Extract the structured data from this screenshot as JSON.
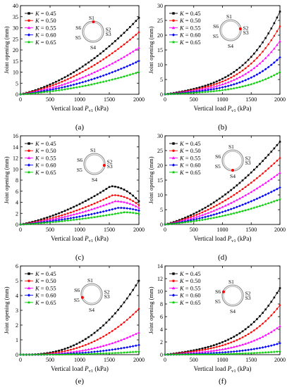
{
  "figure": {
    "ylabel_text": "Joint opening (mm)",
    "xlabel_main": "Vertical load ",
    "xlabel_var": "P",
    "xlabel_sub": "v1",
    "xlabel_unit": " (kPa)",
    "legend_var": "K",
    "ring_labels": [
      "S1",
      "S2",
      "S3",
      "S4",
      "S5",
      "S6"
    ]
  },
  "chart_data": [
    {
      "type": "line",
      "label": "(a)",
      "xlim": [
        0,
        2000
      ],
      "ylim": [
        0,
        40
      ],
      "xticks": [
        0,
        500,
        1000,
        1500,
        2000
      ],
      "yticks": [
        0,
        5,
        10,
        15,
        20,
        25,
        30,
        35,
        40
      ],
      "xlabel": "Vertical load Pv1 (kPa)",
      "ylabel": "Joint opening (mm)",
      "legend_position": "top-left",
      "highlight_segment": "S1",
      "series": [
        {
          "name": "K = 0.45",
          "color": "#000000",
          "marker": "square",
          "y_end": 34.5,
          "shape": "convex"
        },
        {
          "name": "K = 0.50",
          "color": "#ff0000",
          "marker": "circle",
          "y_end": 28.0,
          "shape": "convex"
        },
        {
          "name": "K = 0.55",
          "color": "#ff00ff",
          "marker": "triangle",
          "y_end": 21.0,
          "shape": "convex"
        },
        {
          "name": "K = 0.60",
          "color": "#0000ff",
          "marker": "diamond",
          "y_end": 15.0,
          "shape": "convex"
        },
        {
          "name": "K = 0.65",
          "color": "#00cc00",
          "marker": "star",
          "y_end": 10.0,
          "shape": "convex"
        }
      ]
    },
    {
      "type": "line",
      "label": "(b)",
      "xlim": [
        0,
        2000
      ],
      "ylim": [
        0,
        30
      ],
      "xticks": [
        0,
        500,
        1000,
        1500,
        2000
      ],
      "yticks": [
        0,
        5,
        10,
        15,
        20,
        25,
        30
      ],
      "xlabel": "Vertical load Pv1 (kPa)",
      "ylabel": "Joint opening (mm)",
      "legend_position": "top-left",
      "highlight_segment": "S2",
      "series": [
        {
          "name": "K = 0.45",
          "color": "#000000",
          "marker": "square",
          "y_end": 28.0,
          "shape": "steep"
        },
        {
          "name": "K = 0.50",
          "color": "#ff0000",
          "marker": "circle",
          "y_end": 23.0,
          "shape": "steep"
        },
        {
          "name": "K = 0.55",
          "color": "#ff00ff",
          "marker": "triangle",
          "y_end": 18.0,
          "shape": "steep"
        },
        {
          "name": "K = 0.60",
          "color": "#0000ff",
          "marker": "diamond",
          "y_end": 12.5,
          "shape": "steep"
        },
        {
          "name": "K = 0.65",
          "color": "#00cc00",
          "marker": "star",
          "y_end": 7.5,
          "shape": "steep"
        }
      ]
    },
    {
      "type": "line",
      "label": "(c)",
      "xlim": [
        0,
        2000
      ],
      "ylim": [
        0,
        16
      ],
      "xticks": [
        0,
        500,
        1000,
        1500,
        2000
      ],
      "yticks": [
        0,
        2,
        4,
        6,
        8,
        10,
        12,
        14,
        16
      ],
      "xlabel": "Vertical load Pv1 (kPa)",
      "ylabel": "Joint opening (mm)",
      "legend_position": "top-left",
      "highlight_segment": "S3",
      "series": [
        {
          "name": "K = 0.45",
          "color": "#000000",
          "marker": "square",
          "y_peak": 6.9,
          "x_peak": 1520,
          "y_end": 4.2,
          "shape": "peak"
        },
        {
          "name": "K = 0.50",
          "color": "#ff0000",
          "marker": "circle",
          "y_peak": 5.3,
          "x_peak": 1560,
          "y_end": 3.5,
          "shape": "peak"
        },
        {
          "name": "K = 0.55",
          "color": "#ff00ff",
          "marker": "triangle",
          "y_peak": 4.2,
          "x_peak": 1600,
          "y_end": 3.0,
          "shape": "peak"
        },
        {
          "name": "K = 0.60",
          "color": "#0000ff",
          "marker": "diamond",
          "y_peak": 3.0,
          "x_peak": 1650,
          "y_end": 2.5,
          "shape": "peak"
        },
        {
          "name": "K = 0.65",
          "color": "#00cc00",
          "marker": "star",
          "y_peak": 2.2,
          "x_peak": 1750,
          "y_end": 1.9,
          "shape": "peak"
        }
      ]
    },
    {
      "type": "line",
      "label": "(d)",
      "xlim": [
        0,
        2000
      ],
      "ylim": [
        0,
        30
      ],
      "xticks": [
        0,
        500,
        1000,
        1500,
        2000
      ],
      "yticks": [
        0,
        5,
        10,
        15,
        20,
        25,
        30
      ],
      "xlabel": "Vertical load Pv1 (kPa)",
      "ylabel": "Joint opening (mm)",
      "legend_position": "top-left",
      "highlight_segment": "S4",
      "series": [
        {
          "name": "K = 0.45",
          "color": "#000000",
          "marker": "square",
          "y_end": 28.0,
          "shape": "convex"
        },
        {
          "name": "K = 0.50",
          "color": "#ff0000",
          "marker": "circle",
          "y_end": 22.5,
          "shape": "convex"
        },
        {
          "name": "K = 0.55",
          "color": "#ff00ff",
          "marker": "triangle",
          "y_end": 17.5,
          "shape": "convex"
        },
        {
          "name": "K = 0.60",
          "color": "#0000ff",
          "marker": "diamond",
          "y_end": 12.5,
          "shape": "convex"
        },
        {
          "name": "K = 0.65",
          "color": "#00cc00",
          "marker": "star",
          "y_end": 8.5,
          "shape": "convex"
        }
      ]
    },
    {
      "type": "line",
      "label": "(e)",
      "xlim": [
        0,
        2000
      ],
      "ylim": [
        0,
        6
      ],
      "xticks": [
        0,
        500,
        1000,
        1500,
        2000
      ],
      "yticks": [
        0,
        1,
        2,
        3,
        4,
        5,
        6
      ],
      "xlabel": "Vertical load Pv1 (kPa)",
      "ylabel": "Joint opening (mm)",
      "legend_position": "top-left",
      "highlight_segment": "S5",
      "series": [
        {
          "name": "K = 0.45",
          "color": "#000000",
          "marker": "square",
          "y_end": 5.0,
          "shape": "late"
        },
        {
          "name": "K = 0.50",
          "color": "#ff0000",
          "marker": "circle",
          "y_end": 3.1,
          "shape": "late"
        },
        {
          "name": "K = 0.55",
          "color": "#ff00ff",
          "marker": "triangle",
          "y_end": 1.5,
          "shape": "late"
        },
        {
          "name": "K = 0.60",
          "color": "#0000ff",
          "marker": "diamond",
          "y_end": 0.65,
          "shape": "late"
        },
        {
          "name": "K = 0.65",
          "color": "#00cc00",
          "marker": "star",
          "y_end": 0.2,
          "shape": "late"
        }
      ]
    },
    {
      "type": "line",
      "label": "(f)",
      "xlim": [
        0,
        2000
      ],
      "ylim": [
        0,
        14
      ],
      "xticks": [
        0,
        500,
        1000,
        1500,
        2000
      ],
      "yticks": [
        0,
        2,
        4,
        6,
        8,
        10,
        12,
        14
      ],
      "xlabel": "Vertical load Pv1 (kPa)",
      "ylabel": "Joint opening (mm)",
      "legend_position": "top-left",
      "highlight_segment": "S6",
      "series": [
        {
          "name": "K = 0.45",
          "color": "#000000",
          "marker": "square",
          "y_end": 10.5,
          "shape": "steep"
        },
        {
          "name": "K = 0.50",
          "color": "#ff0000",
          "marker": "circle",
          "y_end": 7.8,
          "shape": "steep"
        },
        {
          "name": "K = 0.55",
          "color": "#ff00ff",
          "marker": "triangle",
          "y_end": 4.5,
          "shape": "steep"
        },
        {
          "name": "K = 0.60",
          "color": "#0000ff",
          "marker": "diamond",
          "y_end": 1.8,
          "shape": "steep"
        },
        {
          "name": "K = 0.65",
          "color": "#00cc00",
          "marker": "star",
          "y_end": 0.5,
          "shape": "steep"
        }
      ]
    }
  ]
}
